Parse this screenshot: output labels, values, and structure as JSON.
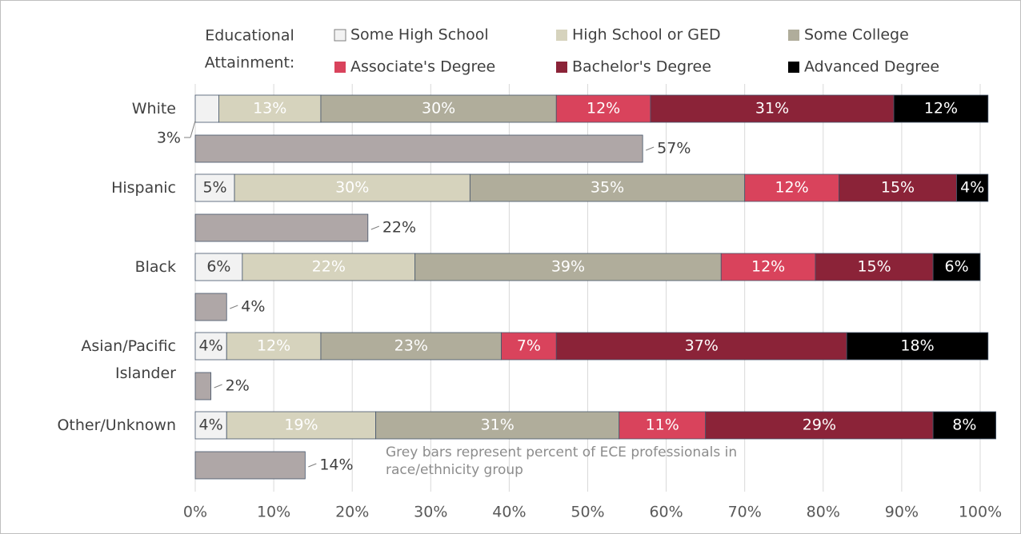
{
  "chart_data": {
    "type": "stacked_bar_horizontal",
    "legend_title": [
      "Educational",
      "Attainment:"
    ],
    "categories": [
      "White",
      "Hispanic",
      "Black",
      "Asian/Pacific Islander",
      "Other/Unknown"
    ],
    "series": [
      {
        "name": "Some High School",
        "color": "#f2f2f2",
        "values": [
          3,
          5,
          6,
          4,
          4
        ],
        "value_labels": [
          "3%",
          "5%",
          "6%",
          "4%",
          "4%"
        ]
      },
      {
        "name": "High School or GED",
        "color": "#d6d3bd",
        "values": [
          13,
          30,
          22,
          12,
          19
        ],
        "value_labels": [
          "13%",
          "30%",
          "22%",
          "12%",
          "19%"
        ]
      },
      {
        "name": "Some College",
        "color": "#b0ad9b",
        "values": [
          30,
          35,
          39,
          23,
          31
        ],
        "value_labels": [
          "30%",
          "35%",
          "39%",
          "23%",
          "31%"
        ]
      },
      {
        "name": "Associate's Degree",
        "color": "#d9435c",
        "values": [
          12,
          12,
          12,
          7,
          11
        ],
        "value_labels": [
          "12%",
          "12%",
          "12%",
          "7%",
          "11%"
        ]
      },
      {
        "name": "Bachelor's Degree",
        "color": "#8b2338",
        "values": [
          31,
          15,
          15,
          37,
          29
        ],
        "value_labels": [
          "31%",
          "15%",
          "15%",
          "37%",
          "29%"
        ]
      },
      {
        "name": "Advanced Degree",
        "color": "#000000",
        "values": [
          12,
          4,
          6,
          18,
          8
        ],
        "value_labels": [
          "12%",
          "4%",
          "6%",
          "18%",
          "8%"
        ]
      }
    ],
    "grey_bars": {
      "color": "#afa7a7",
      "values": [
        57,
        22,
        4,
        2,
        14
      ],
      "value_labels": [
        "57%",
        "22%",
        "4%",
        "2%",
        "14%"
      ]
    },
    "annotation": "Grey bars represent percent of ECE professionals in race/ethnicity group",
    "xlim": [
      0,
      100
    ],
    "xticks": [
      {
        "value": 0,
        "label": "0%"
      },
      {
        "value": 10,
        "label": "10%"
      },
      {
        "value": 20,
        "label": "20%"
      },
      {
        "value": 30,
        "label": "30%"
      },
      {
        "value": 40,
        "label": "40%"
      },
      {
        "value": 50,
        "label": "50%"
      },
      {
        "value": 60,
        "label": "60%"
      },
      {
        "value": 70,
        "label": "70%"
      },
      {
        "value": 80,
        "label": "80%"
      },
      {
        "value": 90,
        "label": "90%"
      },
      {
        "value": 100,
        "label": "100%"
      }
    ],
    "grid": true
  }
}
